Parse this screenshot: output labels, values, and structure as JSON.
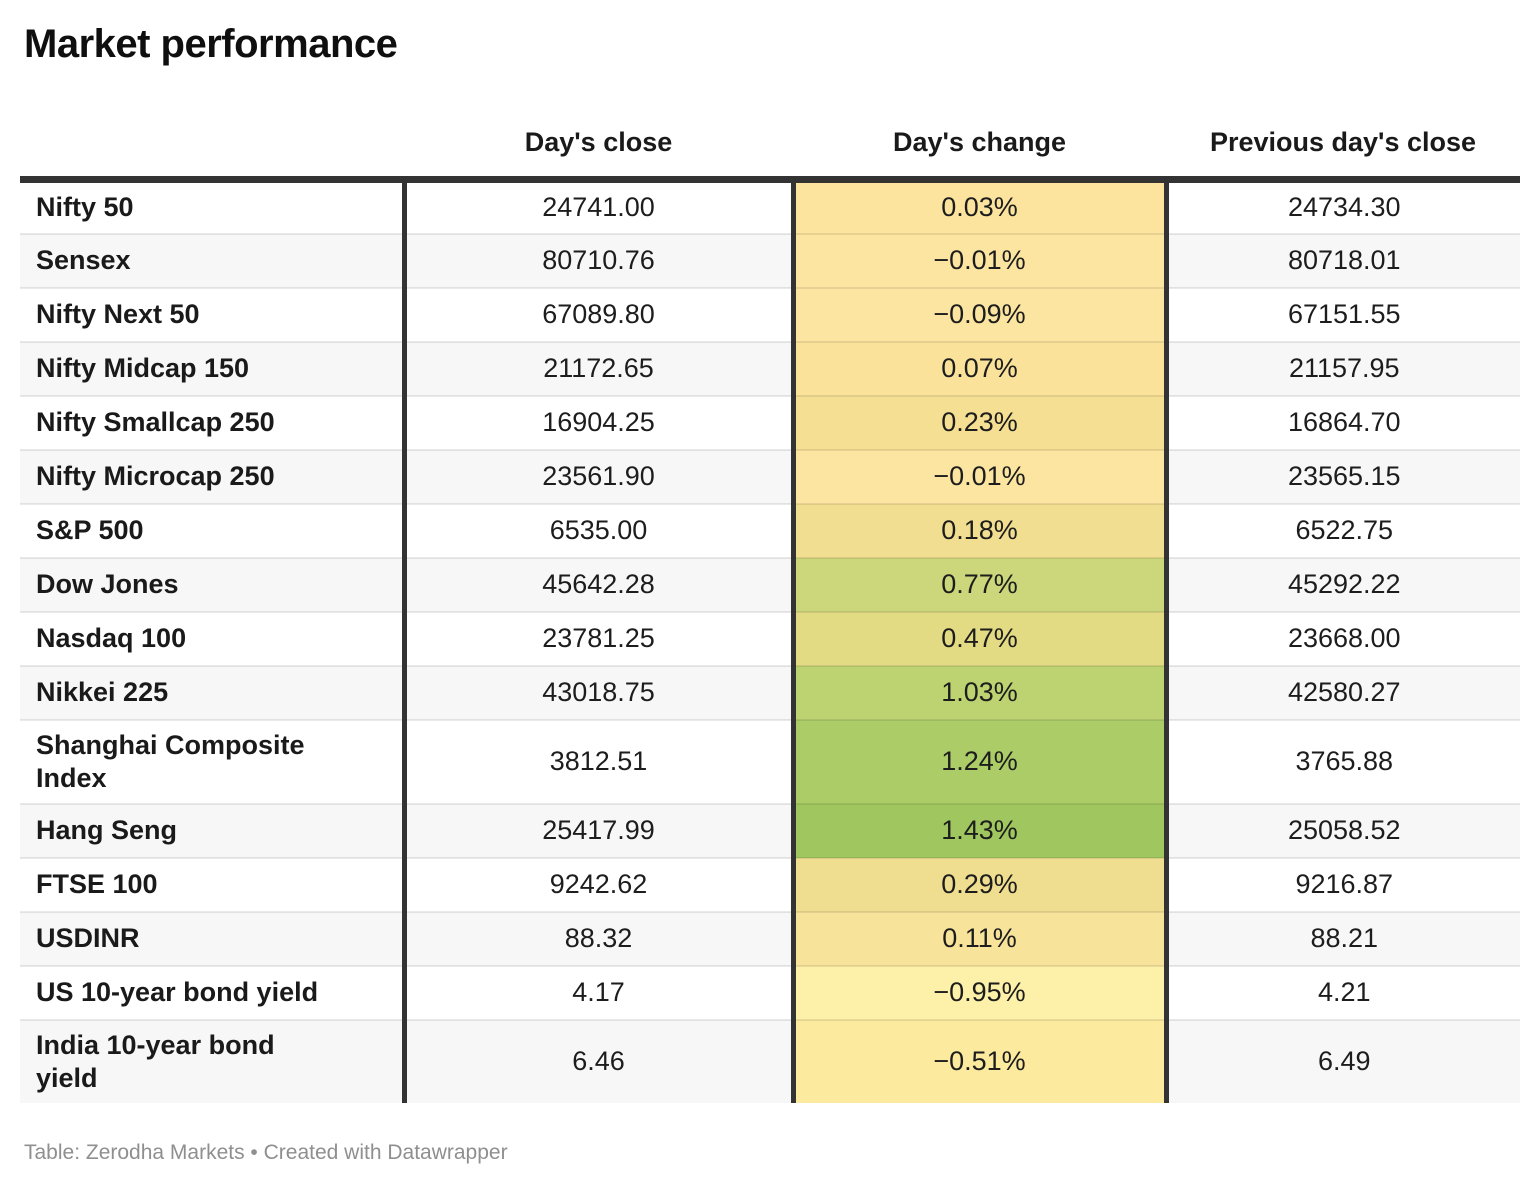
{
  "title": "Market performance",
  "table": {
    "columns": {
      "label": "",
      "close": "Day's close",
      "change": "Day's change",
      "prev": "Previous day's close"
    },
    "rows": [
      {
        "label": "Nifty 50",
        "close": "24741.00",
        "change": "0.03%",
        "prev": "24734.30",
        "change_bg": "#fce49e"
      },
      {
        "label": "Sensex",
        "close": "80710.76",
        "change": "−0.01%",
        "prev": "80718.01",
        "change_bg": "#fce5a0"
      },
      {
        "label": "Nifty Next 50",
        "close": "67089.80",
        "change": "−0.09%",
        "prev": "67151.55",
        "change_bg": "#fce5a0"
      },
      {
        "label": "Nifty Midcap 150",
        "close": "21172.65",
        "change": "0.07%",
        "prev": "21157.95",
        "change_bg": "#fae29b"
      },
      {
        "label": "Nifty Smallcap 250",
        "close": "16904.25",
        "change": "0.23%",
        "prev": "16864.70",
        "change_bg": "#f4df93"
      },
      {
        "label": "Nifty Microcap 250",
        "close": "23561.90",
        "change": "−0.01%",
        "prev": "23565.15",
        "change_bg": "#fce5a0"
      },
      {
        "label": "S&P 500",
        "close": "6535.00",
        "change": "0.18%",
        "prev": "6522.75",
        "change_bg": "#f2de90"
      },
      {
        "label": "Dow Jones",
        "close": "45642.28",
        "change": "0.77%",
        "prev": "45292.22",
        "change_bg": "#ccd67b"
      },
      {
        "label": "Nasdaq 100",
        "close": "23781.25",
        "change": "0.47%",
        "prev": "23668.00",
        "change_bg": "#e3da84"
      },
      {
        "label": "Nikkei 225",
        "close": "43018.75",
        "change": "1.03%",
        "prev": "42580.27",
        "change_bg": "#bdd271"
      },
      {
        "label": "Shanghai Composite Index",
        "close": "3812.51",
        "change": "1.24%",
        "prev": "3765.88",
        "change_bg": "#abcc67"
      },
      {
        "label": "Hang Seng",
        "close": "25417.99",
        "change": "1.43%",
        "prev": "25058.52",
        "change_bg": "#a0c75f"
      },
      {
        "label": "FTSE 100",
        "close": "9242.62",
        "change": "0.29%",
        "prev": "9216.87",
        "change_bg": "#f0de90"
      },
      {
        "label": "USDINR",
        "close": "88.32",
        "change": "0.11%",
        "prev": "88.21",
        "change_bg": "#f8e39b"
      },
      {
        "label": "US 10-year bond yield",
        "close": "4.17",
        "change": "−0.95%",
        "prev": "4.21",
        "change_bg": "#fdf0a8"
      },
      {
        "label": "India 10-year bond yield",
        "close": "6.46",
        "change": "−0.51%",
        "prev": "6.49",
        "change_bg": "#fcea9f"
      }
    ]
  },
  "footer": "Table: Zerodha Markets • Created with Datawrapper",
  "colors": {
    "border_dark": "#333333",
    "row_alt": "#f7f7f7",
    "footer_text": "#8f8f8f"
  },
  "chart_data": {
    "type": "table",
    "title": "Market performance",
    "columns": [
      "Day's close",
      "Day's change",
      "Previous day's close"
    ],
    "rows": [
      [
        "Nifty 50",
        24741.0,
        "0.03%",
        24734.3
      ],
      [
        "Sensex",
        80710.76,
        "-0.01%",
        80718.01
      ],
      [
        "Nifty Next 50",
        67089.8,
        "-0.09%",
        67151.55
      ],
      [
        "Nifty Midcap 150",
        21172.65,
        "0.07%",
        21157.95
      ],
      [
        "Nifty Smallcap 250",
        16904.25,
        "0.23%",
        16864.7
      ],
      [
        "Nifty Microcap 250",
        23561.9,
        "-0.01%",
        23565.15
      ],
      [
        "S&P 500",
        6535.0,
        "0.18%",
        6522.75
      ],
      [
        "Dow Jones",
        45642.28,
        "0.77%",
        45292.22
      ],
      [
        "Nasdaq 100",
        23781.25,
        "0.47%",
        23668.0
      ],
      [
        "Nikkei 225",
        43018.75,
        "1.03%",
        42580.27
      ],
      [
        "Shanghai Composite Index",
        3812.51,
        "1.24%",
        3765.88
      ],
      [
        "Hang Seng",
        25417.99,
        "1.43%",
        25058.52
      ],
      [
        "FTSE 100",
        9242.62,
        "0.29%",
        9216.87
      ],
      [
        "USDINR",
        88.32,
        "0.11%",
        88.21
      ],
      [
        "US 10-year bond yield",
        4.17,
        "-0.95%",
        4.21
      ],
      [
        "India 10-year bond yield",
        6.46,
        "-0.51%",
        6.49
      ]
    ],
    "notes": "Day's change column uses a yellow-to-green color scale by value"
  }
}
